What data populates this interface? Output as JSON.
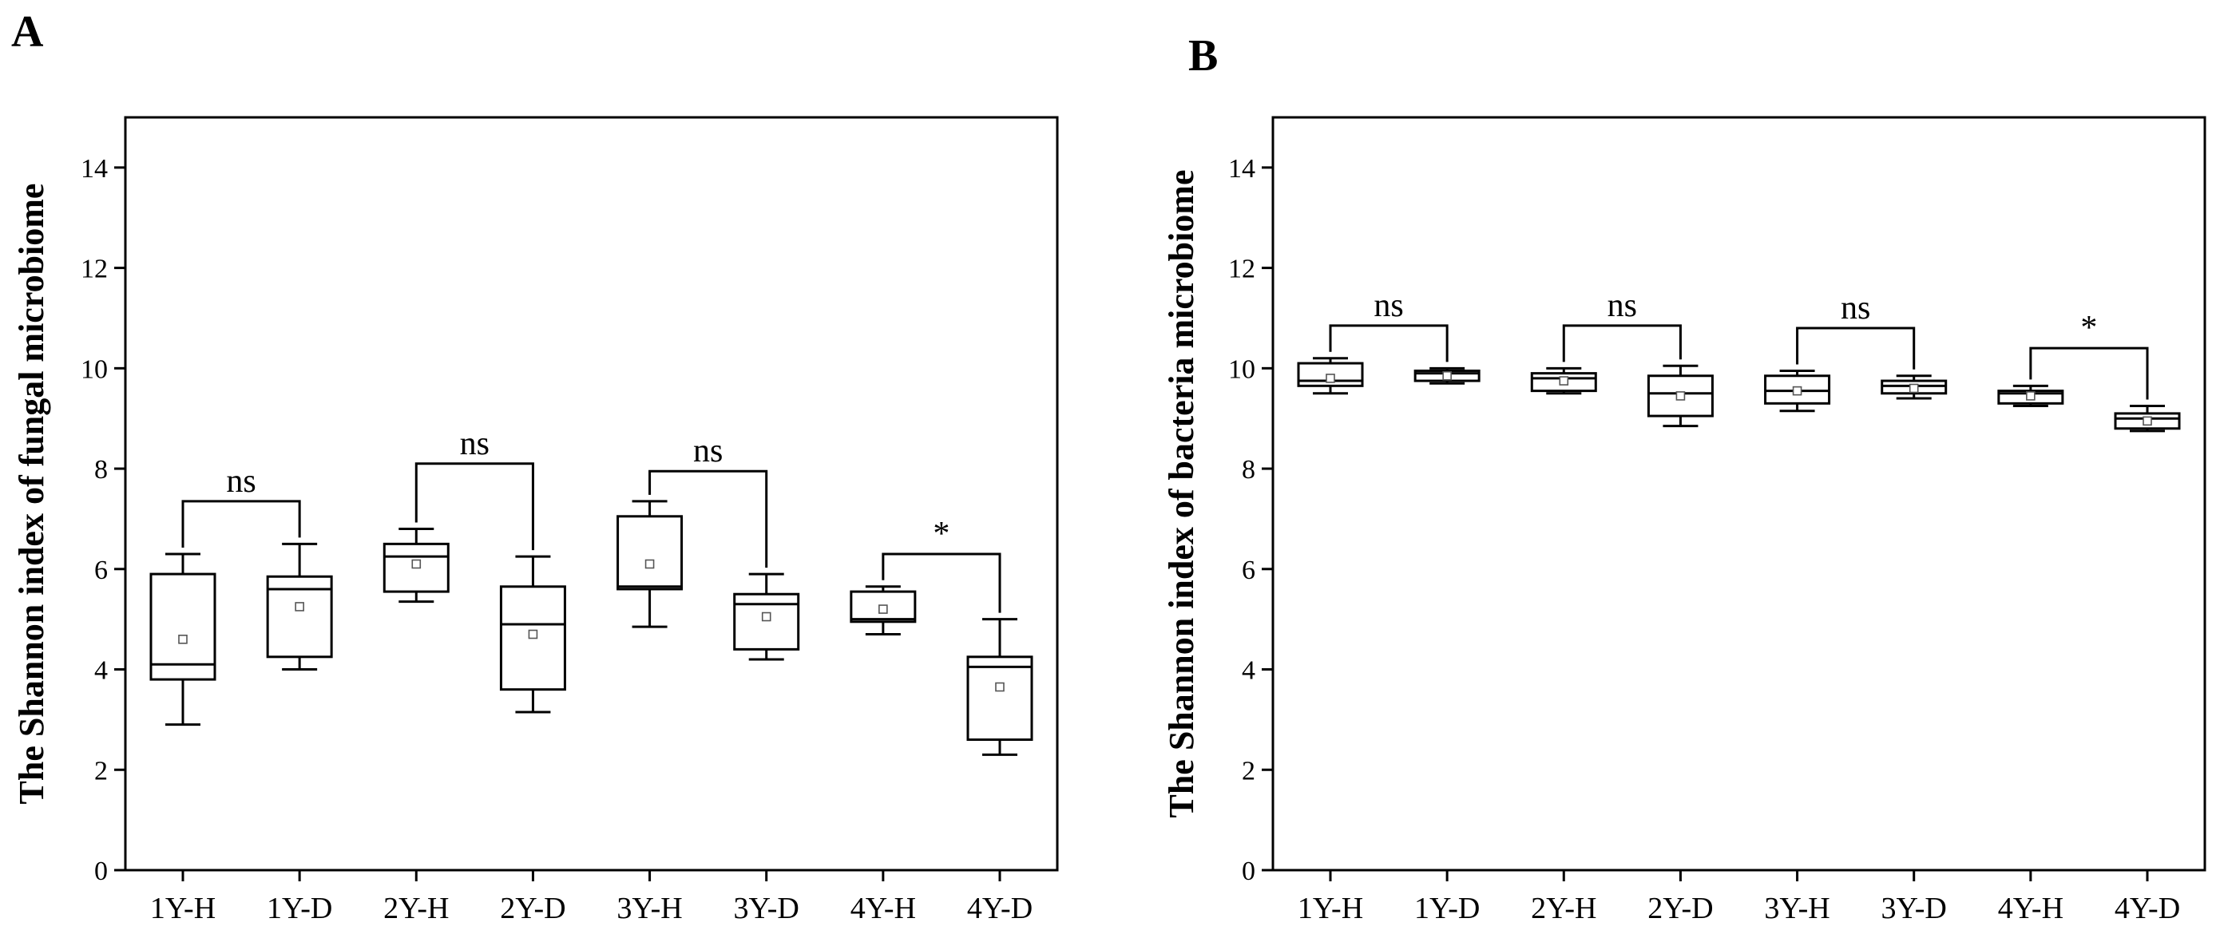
{
  "chart_data": [
    {
      "type": "box",
      "panel_label": "A",
      "title": "",
      "xlabel": "",
      "ylabel": "The Shannon index of fungal microbiome",
      "ylim": [
        0,
        15
      ],
      "yticks": [
        0,
        2,
        4,
        6,
        8,
        10,
        12,
        14
      ],
      "categories": [
        "1Y-H",
        "1Y-D",
        "2Y-H",
        "2Y-D",
        "3Y-H",
        "3Y-D",
        "4Y-H",
        "4Y-D"
      ],
      "boxes": [
        {
          "min": 2.9,
          "q1": 3.8,
          "median": 4.1,
          "q3": 5.9,
          "max": 6.3,
          "mean": 4.6
        },
        {
          "min": 4.0,
          "q1": 4.25,
          "median": 5.6,
          "q3": 5.85,
          "max": 6.5,
          "mean": 5.25
        },
        {
          "min": 5.35,
          "q1": 5.55,
          "median": 6.25,
          "q3": 6.5,
          "max": 6.8,
          "mean": 6.1
        },
        {
          "min": 3.15,
          "q1": 3.6,
          "median": 4.9,
          "q3": 5.65,
          "max": 6.25,
          "mean": 4.7
        },
        {
          "min": 4.85,
          "q1": 5.6,
          "median": 5.65,
          "q3": 7.05,
          "max": 7.35,
          "mean": 6.1
        },
        {
          "min": 4.2,
          "q1": 4.4,
          "median": 5.3,
          "q3": 5.5,
          "max": 5.9,
          "mean": 5.05
        },
        {
          "min": 4.7,
          "q1": 4.95,
          "median": 5.0,
          "q3": 5.55,
          "max": 5.65,
          "mean": 5.2
        },
        {
          "min": 2.3,
          "q1": 2.6,
          "median": 4.05,
          "q3": 4.25,
          "max": 5.0,
          "mean": 3.65
        }
      ],
      "comparisons": [
        {
          "pair": [
            0,
            1
          ],
          "label": "ns",
          "level": 7.35
        },
        {
          "pair": [
            2,
            3
          ],
          "label": "ns",
          "level": 8.1
        },
        {
          "pair": [
            4,
            5
          ],
          "label": "ns",
          "level": 7.95
        },
        {
          "pair": [
            6,
            7
          ],
          "label": "*",
          "level": 6.3
        }
      ]
    },
    {
      "type": "box",
      "panel_label": "B",
      "title": "",
      "xlabel": "",
      "ylabel": "The Shannon index of bacteria microbiome",
      "ylim": [
        0,
        15
      ],
      "yticks": [
        0,
        2,
        4,
        6,
        8,
        10,
        12,
        14
      ],
      "categories": [
        "1Y-H",
        "1Y-D",
        "2Y-H",
        "2Y-D",
        "3Y-H",
        "3Y-D",
        "4Y-H",
        "4Y-D"
      ],
      "boxes": [
        {
          "min": 9.5,
          "q1": 9.65,
          "median": 9.75,
          "q3": 10.1,
          "max": 10.2,
          "mean": 9.8
        },
        {
          "min": 9.7,
          "q1": 9.75,
          "median": 9.9,
          "q3": 9.95,
          "max": 10.0,
          "mean": 9.85
        },
        {
          "min": 9.5,
          "q1": 9.55,
          "median": 9.8,
          "q3": 9.9,
          "max": 10.0,
          "mean": 9.75
        },
        {
          "min": 8.85,
          "q1": 9.05,
          "median": 9.5,
          "q3": 9.85,
          "max": 10.05,
          "mean": 9.45
        },
        {
          "min": 9.15,
          "q1": 9.3,
          "median": 9.55,
          "q3": 9.85,
          "max": 9.95,
          "mean": 9.55
        },
        {
          "min": 9.4,
          "q1": 9.5,
          "median": 9.65,
          "q3": 9.75,
          "max": 9.85,
          "mean": 9.6
        },
        {
          "min": 9.25,
          "q1": 9.3,
          "median": 9.5,
          "q3": 9.55,
          "max": 9.65,
          "mean": 9.45
        },
        {
          "min": 8.75,
          "q1": 8.8,
          "median": 9.0,
          "q3": 9.1,
          "max": 9.25,
          "mean": 8.95
        }
      ],
      "comparisons": [
        {
          "pair": [
            0,
            1
          ],
          "label": "ns",
          "level": 10.85
        },
        {
          "pair": [
            2,
            3
          ],
          "label": "ns",
          "level": 10.85
        },
        {
          "pair": [
            4,
            5
          ],
          "label": "ns",
          "level": 10.8
        },
        {
          "pair": [
            6,
            7
          ],
          "label": "*",
          "level": 10.4
        }
      ]
    }
  ]
}
